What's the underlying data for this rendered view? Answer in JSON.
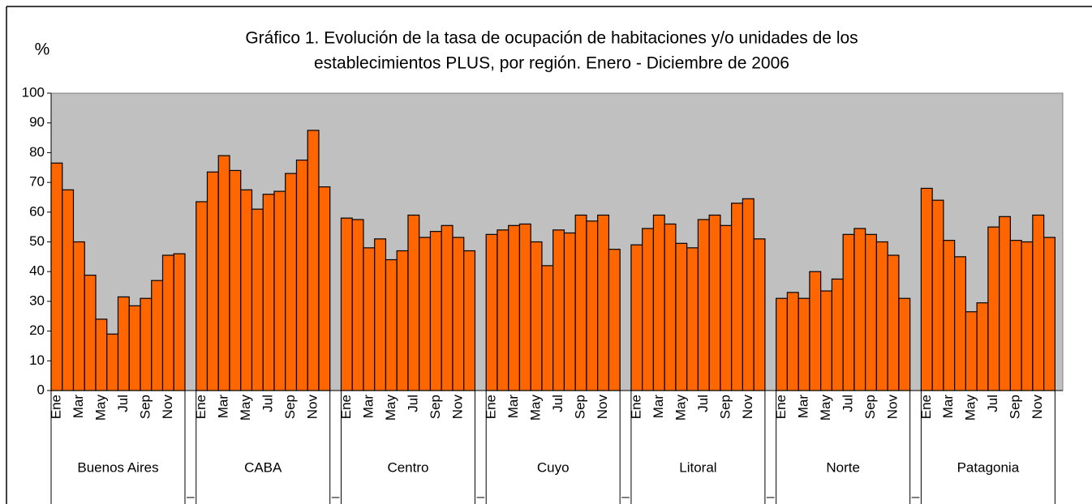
{
  "chart_data": {
    "type": "bar",
    "title": [
      "Gráfico 1. Evolución de la tasa de ocupación de habitaciones y/o unidades de los",
      "establecimientos PLUS, por región. Enero - Diciembre de 2006"
    ],
    "ylabel": "%",
    "color": "#ff6600",
    "background": "#c0c0c0",
    "ylim": [
      0,
      100
    ],
    "yticks": [
      0,
      10,
      20,
      30,
      40,
      50,
      60,
      70,
      80,
      90,
      100
    ],
    "grid": false,
    "groups": [
      {
        "name": "Buenos Aires",
        "categories": [
          "Ene",
          null,
          "Mar",
          null,
          "May",
          null,
          "Jul",
          null,
          "Sep",
          null,
          "Nov",
          null
        ],
        "values": [
          76.5,
          67.5,
          50,
          38.8,
          24,
          19,
          31.5,
          28.5,
          31,
          37,
          45.5,
          46
        ]
      },
      {
        "name": "CABA",
        "categories": [
          "Ene",
          null,
          "Mar",
          null,
          "May",
          null,
          "Jul",
          null,
          "Sep",
          null,
          "Nov",
          null
        ],
        "values": [
          63.5,
          73.5,
          79,
          74,
          67.5,
          61,
          66,
          67,
          73,
          77.5,
          87.5,
          68.5
        ]
      },
      {
        "name": "Centro",
        "categories": [
          "Ene",
          null,
          "Mar",
          null,
          "May",
          null,
          "Jul",
          null,
          "Sep",
          null,
          "Nov",
          null
        ],
        "values": [
          58,
          57.5,
          48,
          51,
          44,
          47,
          59,
          51.5,
          53.5,
          55.5,
          51.5,
          47
        ]
      },
      {
        "name": "Cuyo",
        "categories": [
          "Ene",
          null,
          "Mar",
          null,
          "May",
          null,
          "Jul",
          null,
          "Sep",
          null,
          "Nov",
          null
        ],
        "values": [
          52.5,
          54,
          55.5,
          56,
          50,
          42,
          54,
          53,
          59,
          57,
          59,
          47.5
        ]
      },
      {
        "name": "Litoral",
        "categories": [
          "Ene",
          null,
          "Mar",
          null,
          "May",
          null,
          "Jul",
          null,
          "Sep",
          null,
          "Nov",
          null
        ],
        "values": [
          49,
          54.5,
          59,
          56,
          49.5,
          48,
          57.5,
          59,
          55.5,
          63,
          64.5,
          51
        ]
      },
      {
        "name": "Norte",
        "categories": [
          "Ene",
          null,
          "Mar",
          null,
          "May",
          null,
          "Jul",
          null,
          "Sep",
          null,
          "Nov",
          null
        ],
        "values": [
          31,
          33,
          31,
          40,
          33.5,
          37.5,
          52.5,
          54.5,
          52.5,
          50,
          45.5,
          31
        ]
      },
      {
        "name": "Patagonia",
        "categories": [
          "Ene",
          null,
          "Mar",
          null,
          "May",
          null,
          "Jul",
          null,
          "Sep",
          null,
          "Nov",
          null
        ],
        "values": [
          68,
          64,
          50.5,
          45,
          26.5,
          29.5,
          55,
          58.5,
          50.5,
          50,
          59,
          51.5
        ]
      }
    ]
  }
}
